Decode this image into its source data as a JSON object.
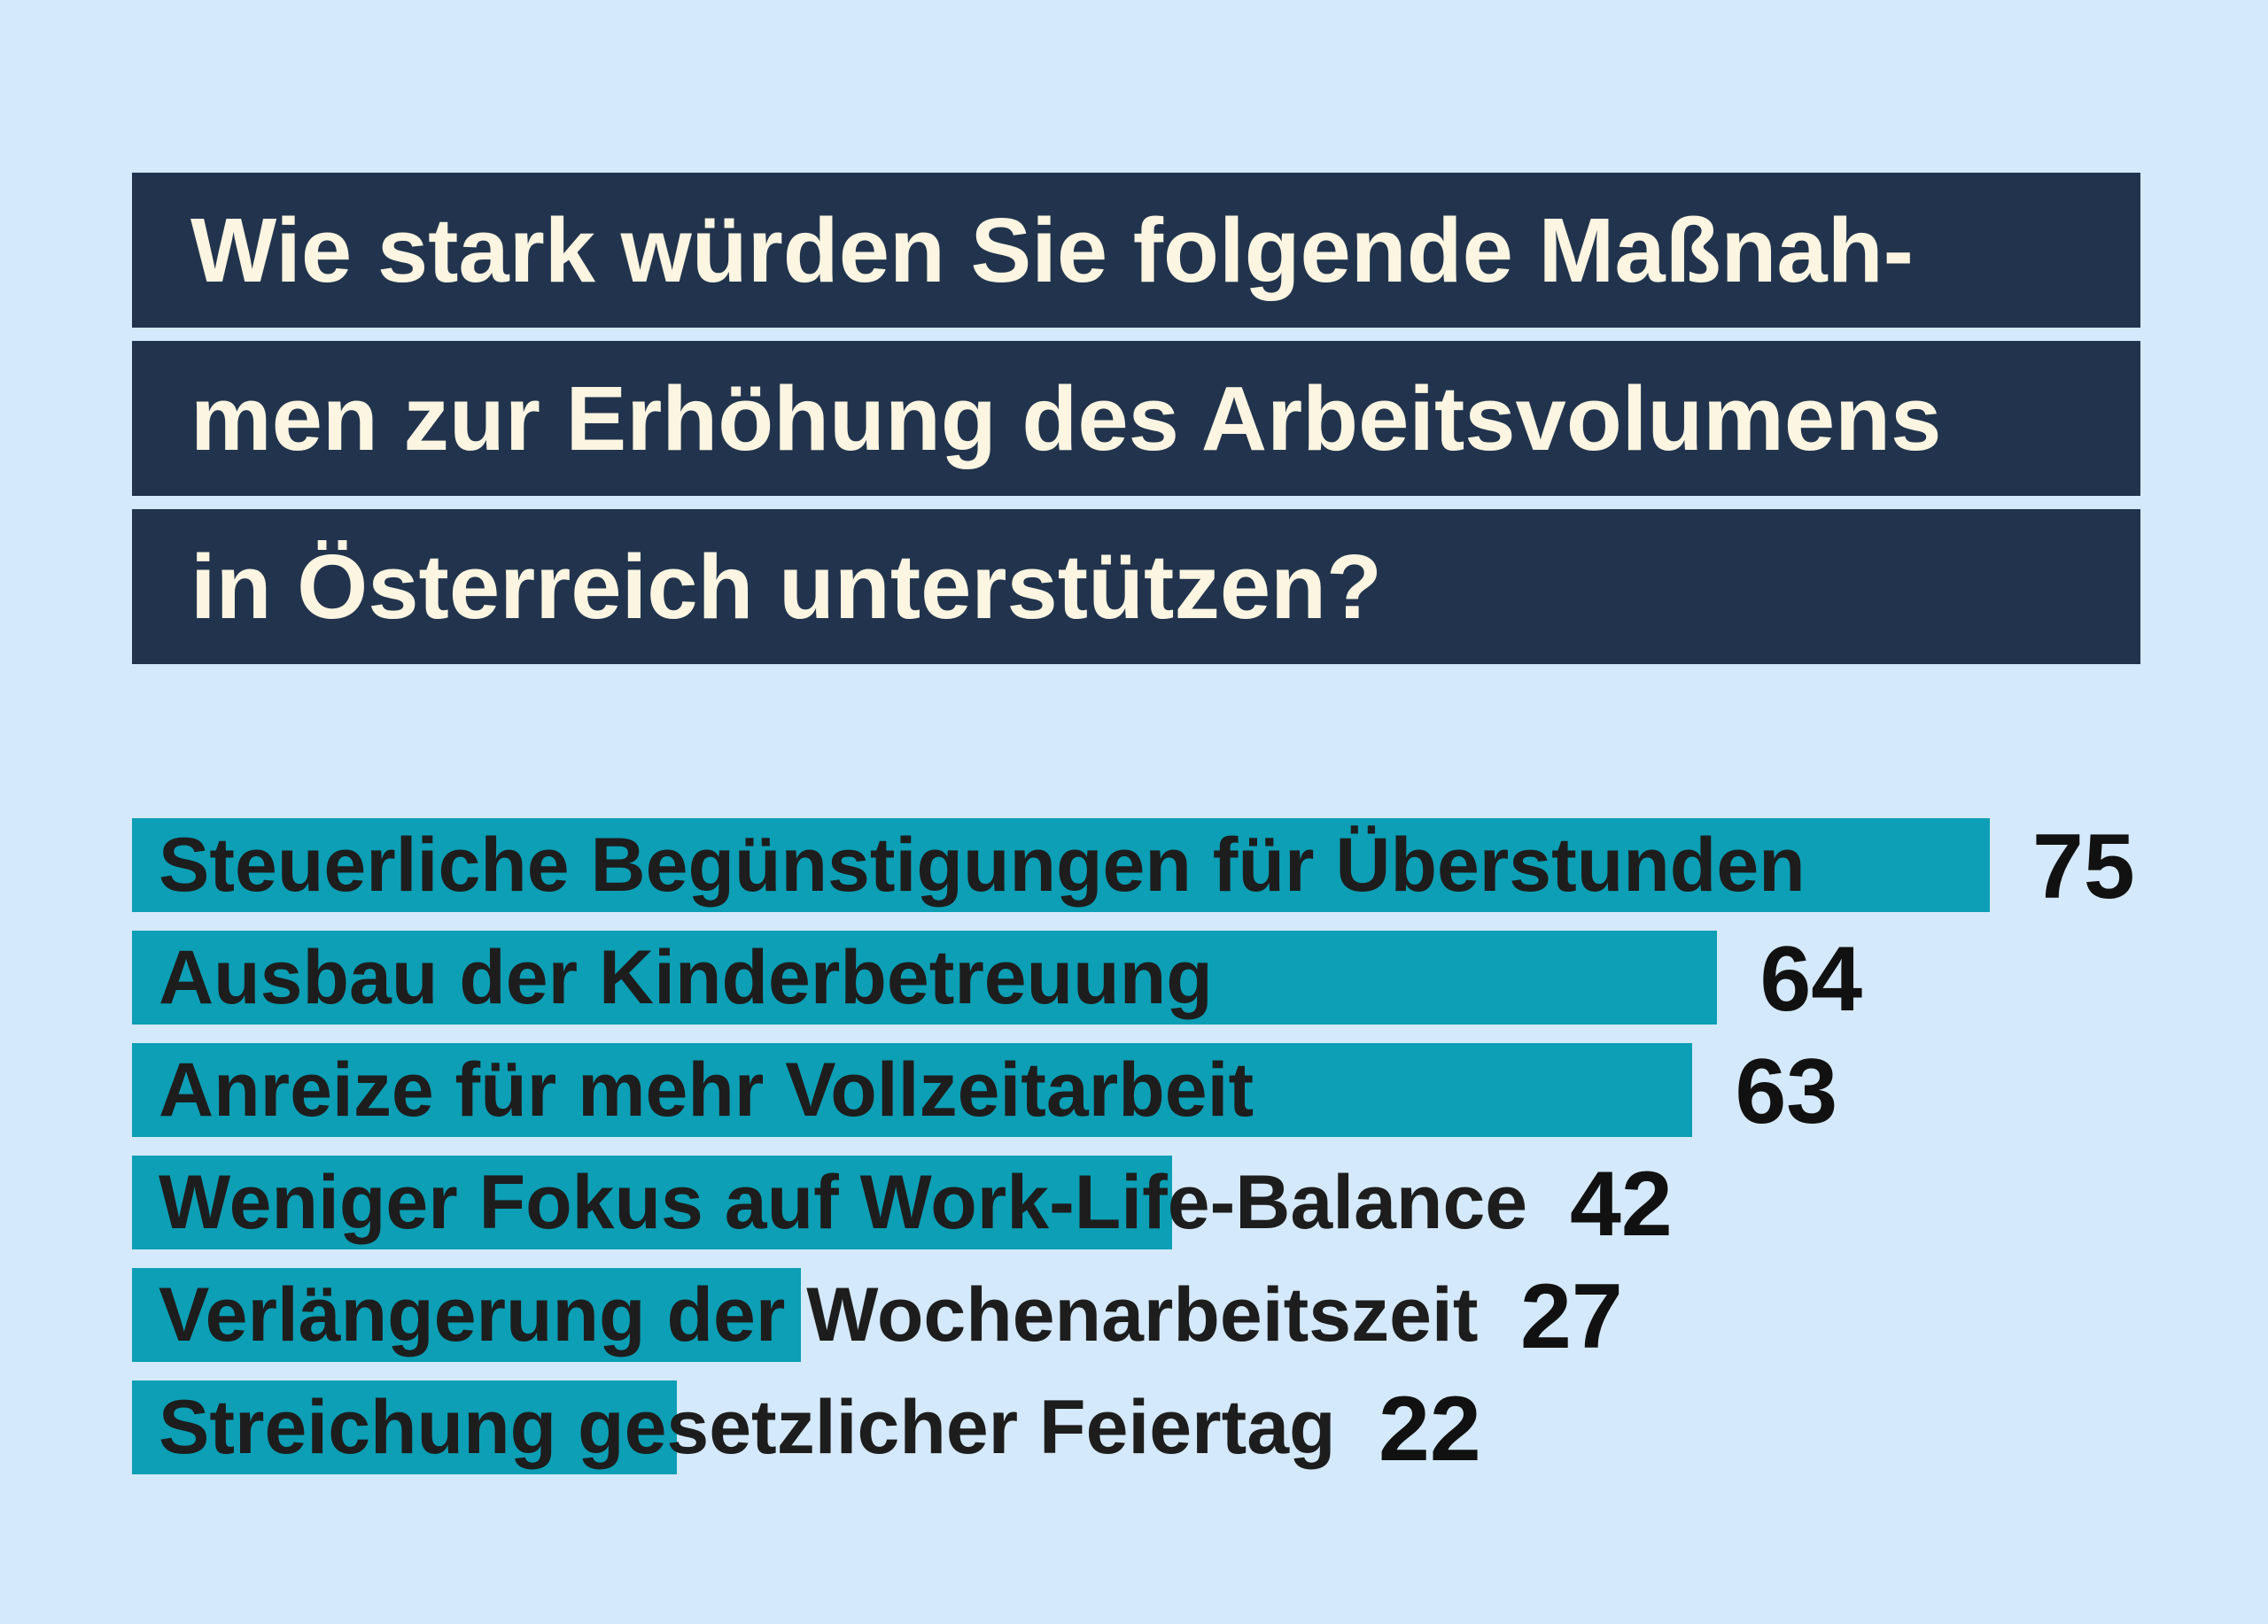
{
  "colors": {
    "background": "#d4e9fb",
    "title_background": "#22344d",
    "title_text": "#fbf5e2",
    "bar": "#0c9fb5",
    "label_text": "#1d1d1d",
    "value_text": "#111111"
  },
  "title_lines": [
    "Wie stark würden Sie folgende Maßnah-",
    "men zur Erhöhung des Arbeitsvolumens",
    "in Österreich unterstützen?"
  ],
  "chart_data": {
    "type": "bar",
    "orientation": "horizontal",
    "title": "Wie stark würden Sie folgende Maßnahmen zur Erhöhung des Arbeitsvolumens in Österreich unterstützen?",
    "categories": [
      "Steuerliche Begünstigungen für Überstunden",
      "Ausbau der Kinderbetreuung",
      "Anreize für mehr Vollzeitarbeit",
      "Weniger Fokus auf Work-Life-Balance",
      " Verlängerung der Wochenarbeitszeit",
      "Streichung gesetzlicher Feiertag"
    ],
    "values": [
      75,
      64,
      63,
      42,
      27,
      22
    ],
    "data_labels": [
      "75",
      "64",
      "63",
      "42",
      "27",
      "22"
    ],
    "xlim": [
      0,
      100
    ],
    "grid": false,
    "legend": "none"
  }
}
